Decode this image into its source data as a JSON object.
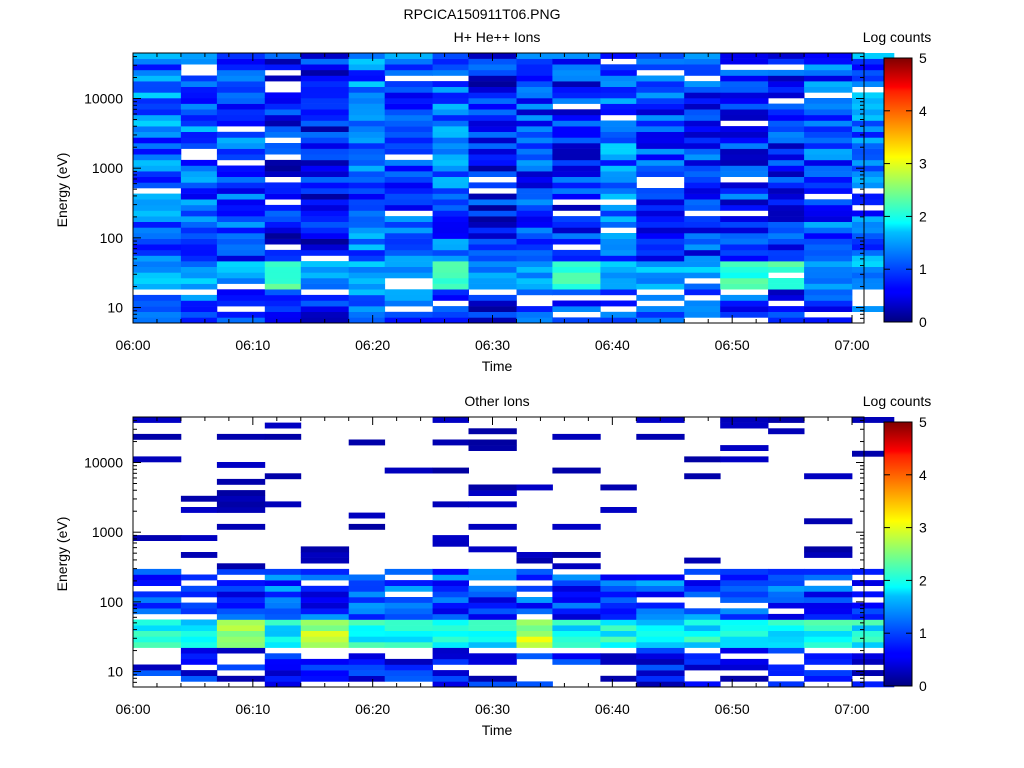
{
  "page": {
    "title": "RPCICA150911T06.PNG"
  },
  "chart_data": [
    {
      "type": "heatmap",
      "title": "H+ He++ Ions",
      "xlabel": "Time",
      "ylabel": "Energy (eV)",
      "x_ticks": [
        "06:00",
        "06:10",
        "06:20",
        "06:30",
        "06:40",
        "06:50",
        "07:00"
      ],
      "xlim": [
        "06:00",
        "07:01"
      ],
      "y_scale": "log",
      "y_ticks": [
        10,
        100,
        1000,
        10000
      ],
      "ylim": [
        6,
        45000
      ],
      "colorbar": {
        "label": "Log counts",
        "ticks": [
          0,
          1,
          2,
          3,
          4,
          5
        ],
        "range": [
          0,
          5
        ],
        "colormap": "jet"
      },
      "time_bins": [
        "06:00",
        "06:04",
        "06:07",
        "06:11",
        "06:14",
        "06:18",
        "06:21",
        "06:25",
        "06:28",
        "06:32",
        "06:35",
        "06:39",
        "06:42",
        "06:46",
        "06:49",
        "06:53",
        "06:56",
        "07:00"
      ],
      "energy_range_ev": [
        6,
        45000
      ],
      "energy_bin_count": 48,
      "cell_log_counts": "mostly 0.3–1.5 across all energies; peak ~2.0–2.6 near 25–45 eV at 06:14, 06:25, 06:35, 06:53, 06:56; occasional empty bins",
      "grid": false
    },
    {
      "type": "heatmap",
      "title": "Other Ions",
      "xlabel": "Time",
      "ylabel": "Energy (eV)",
      "x_ticks": [
        "06:00",
        "06:10",
        "06:20",
        "06:30",
        "06:40",
        "06:50",
        "07:00"
      ],
      "xlim": [
        "06:00",
        "07:01"
      ],
      "y_scale": "log",
      "y_ticks": [
        10,
        100,
        1000,
        10000
      ],
      "ylim": [
        6,
        45000
      ],
      "colorbar": {
        "label": "Log counts",
        "ticks": [
          0,
          1,
          2,
          3,
          4,
          5
        ],
        "range": [
          0,
          5
        ],
        "colormap": "jet"
      },
      "time_bins": [
        "06:00",
        "06:04",
        "06:07",
        "06:11",
        "06:14",
        "06:18",
        "06:21",
        "06:25",
        "06:28",
        "06:32",
        "06:35",
        "06:39",
        "06:42",
        "06:46",
        "06:49",
        "06:53",
        "06:56",
        "07:00"
      ],
      "energy_range_ev": [
        6,
        45000
      ],
      "energy_bin_count": 48,
      "cell_log_counts": "sparse ~0.2 above 300 eV; 0.5–1.5 between 60–250 eV; peak ~2.5–3.2 near 30–45 eV at 06:07, 06:14, 06:35; gaps below 20 eV",
      "grid": false
    }
  ]
}
